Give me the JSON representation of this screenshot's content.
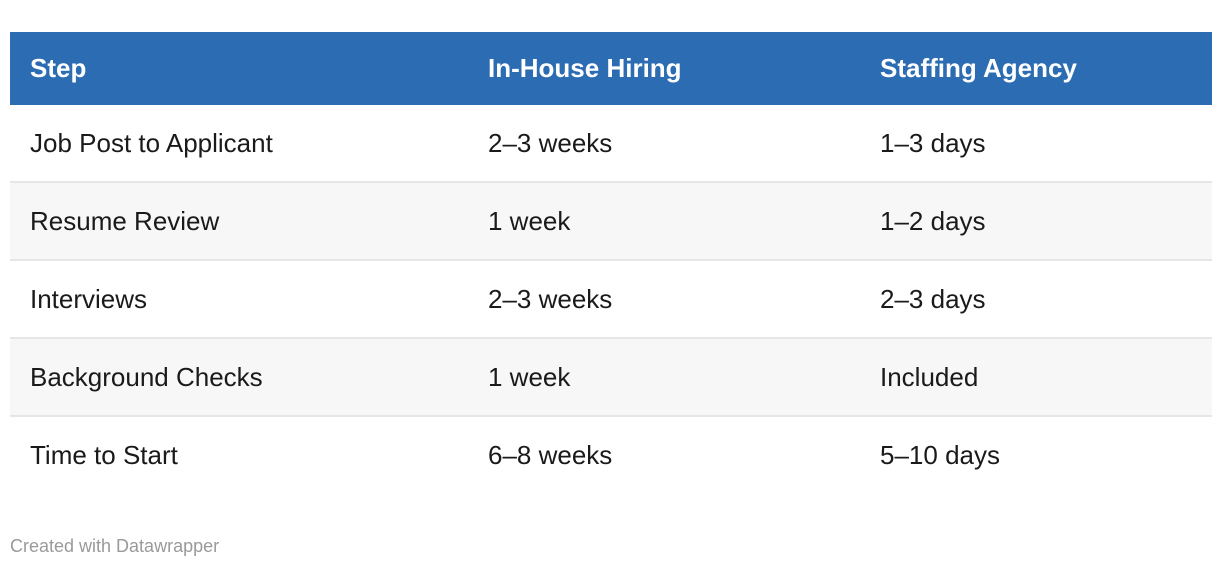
{
  "chart_data": {
    "type": "table",
    "columns": [
      "Step",
      "In-House Hiring",
      "Staffing Agency"
    ],
    "rows": [
      [
        "Job Post to Applicant",
        "2–3 weeks",
        "1–3 days"
      ],
      [
        "Resume Review",
        "1 week",
        "1–2 days"
      ],
      [
        "Interviews",
        "2–3 weeks",
        "2–3 days"
      ],
      [
        "Background Checks",
        "1 week",
        "Included"
      ],
      [
        "Time to Start",
        "6–8 weeks",
        "5–10 days"
      ]
    ],
    "layout": {
      "header_position": "top",
      "striped_rows": true,
      "legend_position": "none",
      "grid": "horizontal-row-borders"
    }
  },
  "footer": {
    "credit": "Created with Datawrapper"
  },
  "colors": {
    "header_bg": "#2b6cb3",
    "header_text": "#ffffff",
    "row_stripe": "#f7f7f7",
    "row_border": "#e6e6e6",
    "body_text": "#1a1a1a",
    "credit_text": "#9a9a9a",
    "page_bg": "#ffffff"
  }
}
